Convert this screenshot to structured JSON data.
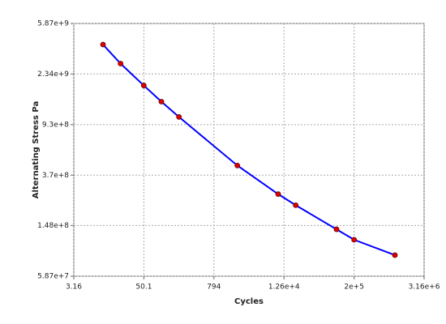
{
  "chart_data": {
    "type": "line",
    "x_label": "Cycles",
    "y_label": "Alternating Stress Pa",
    "x": [
      10,
      20,
      50,
      100,
      200,
      2000,
      10000,
      20000,
      100000,
      200000,
      1000000
    ],
    "series": [
      {
        "color": "#0000ff",
        "marker_color": "#e00000",
        "values": [
          3999000000,
          2827000000,
          1896000000,
          1413000000,
          1069000000,
          441000000,
          262000000,
          214000000,
          138000000,
          114000000,
          86200000
        ]
      }
    ],
    "xscale": "log",
    "yscale": "log",
    "xlim": [
      3.16,
      3160000
    ],
    "xticks": [
      3.16,
      50.1,
      794,
      {
        "value": 12600,
        "label": "1.26e+4"
      },
      {
        "value": 200000,
        "label": "2e+5"
      },
      {
        "value": 3160000,
        "label": "3.16e+6"
      }
    ],
    "ylim": [
      58700000,
      5870000000
    ],
    "yticks": [
      {
        "value": 58700000,
        "label": "5.87e+7"
      },
      {
        "value": 148000000,
        "label": "1.48e+8"
      },
      {
        "value": 370000000,
        "label": "3.7e+8"
      },
      {
        "value": 930000000,
        "label": "9.3e+8"
      },
      {
        "value": 2340000000,
        "label": "2.34e+9"
      },
      {
        "value": 5870000000,
        "label": "5.87e+9"
      }
    ],
    "grid": true
  }
}
